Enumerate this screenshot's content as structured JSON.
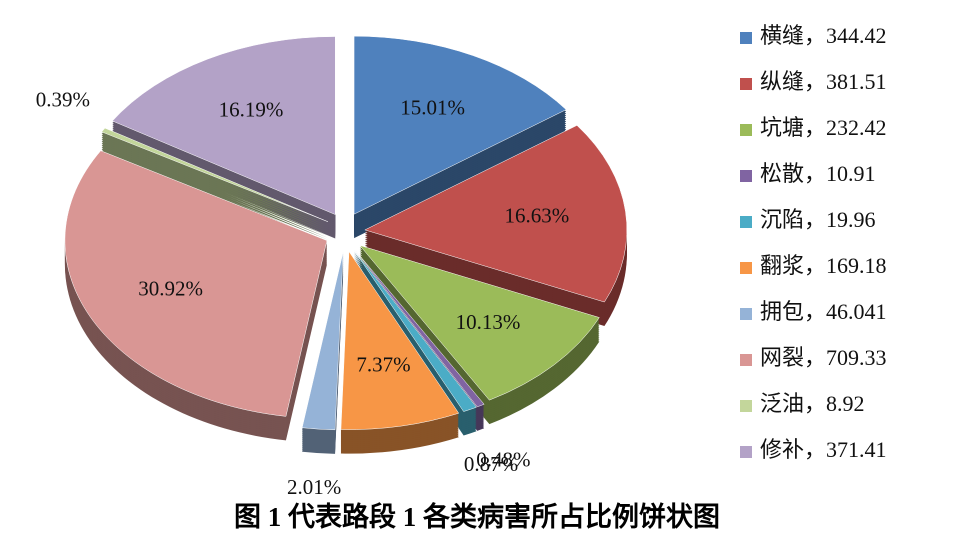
{
  "chart_data": {
    "type": "pie",
    "title": "图 1   代表路段 1 各类病害所占比例饼状图",
    "categories": [
      "横缝，344.42",
      "纵缝，381.51",
      "坑塘，232.42",
      "松散，10.91",
      "沉陷，19.96",
      "翻浆，169.18",
      "拥包，46.041",
      "网裂，709.33",
      "泛油，8.92",
      "修补，371.41"
    ],
    "values": [
      15.01,
      16.63,
      10.13,
      0.48,
      0.87,
      7.37,
      2.01,
      30.92,
      0.39,
      16.19
    ],
    "value_labels": [
      "15.01%",
      "16.63%",
      "10.13%",
      "0.48%",
      "0.87%",
      "7.37%",
      "2.01%",
      "30.92%",
      "0.39%",
      "16.19%"
    ],
    "colors": [
      "#4f81bd",
      "#c0504d",
      "#9bbb59",
      "#8064a2",
      "#4bacc6",
      "#f79646",
      "#95b3d7",
      "#d99694",
      "#c3d69b",
      "#b3a2c7"
    ],
    "legend": "right"
  }
}
